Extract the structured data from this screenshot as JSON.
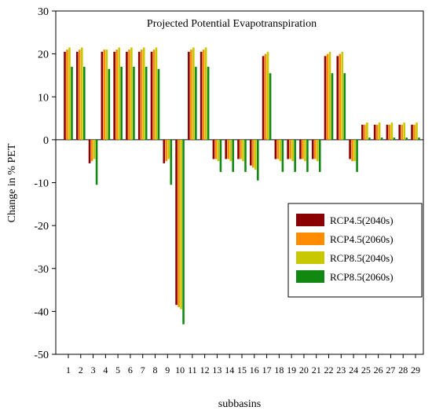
{
  "chart_data": {
    "type": "bar",
    "title": "Projected Potential Evapotranspiration",
    "xlabel": "subbasins",
    "ylabel": "Change in % PET",
    "ylim": [
      -50,
      30
    ],
    "yticks": [
      30,
      20,
      10,
      0,
      -10,
      -20,
      -30,
      -40,
      -50
    ],
    "grid": false,
    "legend_position": "center-right",
    "categories": [
      "1",
      "2",
      "3",
      "4",
      "5",
      "6",
      "7",
      "8",
      "9",
      "10",
      "11",
      "12",
      "13",
      "14",
      "15",
      "16",
      "17",
      "18",
      "19",
      "20",
      "21",
      "22",
      "23",
      "24",
      "25",
      "26",
      "27",
      "28",
      "29"
    ],
    "series": [
      {
        "name": "RCP4.5(2040s)",
        "color": "#8b0000",
        "values": [
          20.5,
          20.5,
          -5.5,
          20.5,
          20.5,
          20.5,
          20.5,
          20.5,
          -5.5,
          -38.5,
          20.5,
          20.5,
          -4.5,
          -4.5,
          -4.5,
          -6,
          19.5,
          -4.5,
          -4.5,
          -4.5,
          -4.5,
          19.5,
          19.5,
          -4.5,
          3.5,
          3.5,
          3.5,
          3.5,
          3.5
        ]
      },
      {
        "name": "RCP4.5(2060s)",
        "color": "#ff8c00",
        "values": [
          21,
          21,
          -5,
          21,
          21,
          21,
          21,
          21,
          -5,
          -39,
          21,
          21,
          -4.5,
          -4.5,
          -4.5,
          -6.5,
          20,
          -4.5,
          -4.5,
          -4.5,
          -4.5,
          20,
          20,
          -5,
          3.5,
          3.5,
          3.5,
          3.5,
          3.5
        ]
      },
      {
        "name": "RCP8.5(2040s)",
        "color": "#c8c800",
        "values": [
          21.5,
          21.5,
          -4.5,
          21,
          21.5,
          21.5,
          21.5,
          21.5,
          -4.5,
          -39.5,
          21.5,
          21.5,
          -5,
          -5,
          -5,
          -7,
          20.5,
          -5,
          -5,
          -5,
          -5,
          20.5,
          20.5,
          -5,
          4,
          4,
          4,
          4,
          4
        ]
      },
      {
        "name": "RCP8.5(2060s)",
        "color": "#118811",
        "values": [
          17,
          17,
          -10.5,
          16.5,
          17,
          17,
          17,
          16.5,
          -10.5,
          -43,
          17,
          17,
          -7.5,
          -7.5,
          -7.5,
          -9.5,
          15.5,
          -7.5,
          -7.5,
          -7.5,
          -7.5,
          15.5,
          15.5,
          -7.5,
          0.5,
          0.5,
          0.5,
          0.5,
          0.5
        ]
      }
    ]
  }
}
